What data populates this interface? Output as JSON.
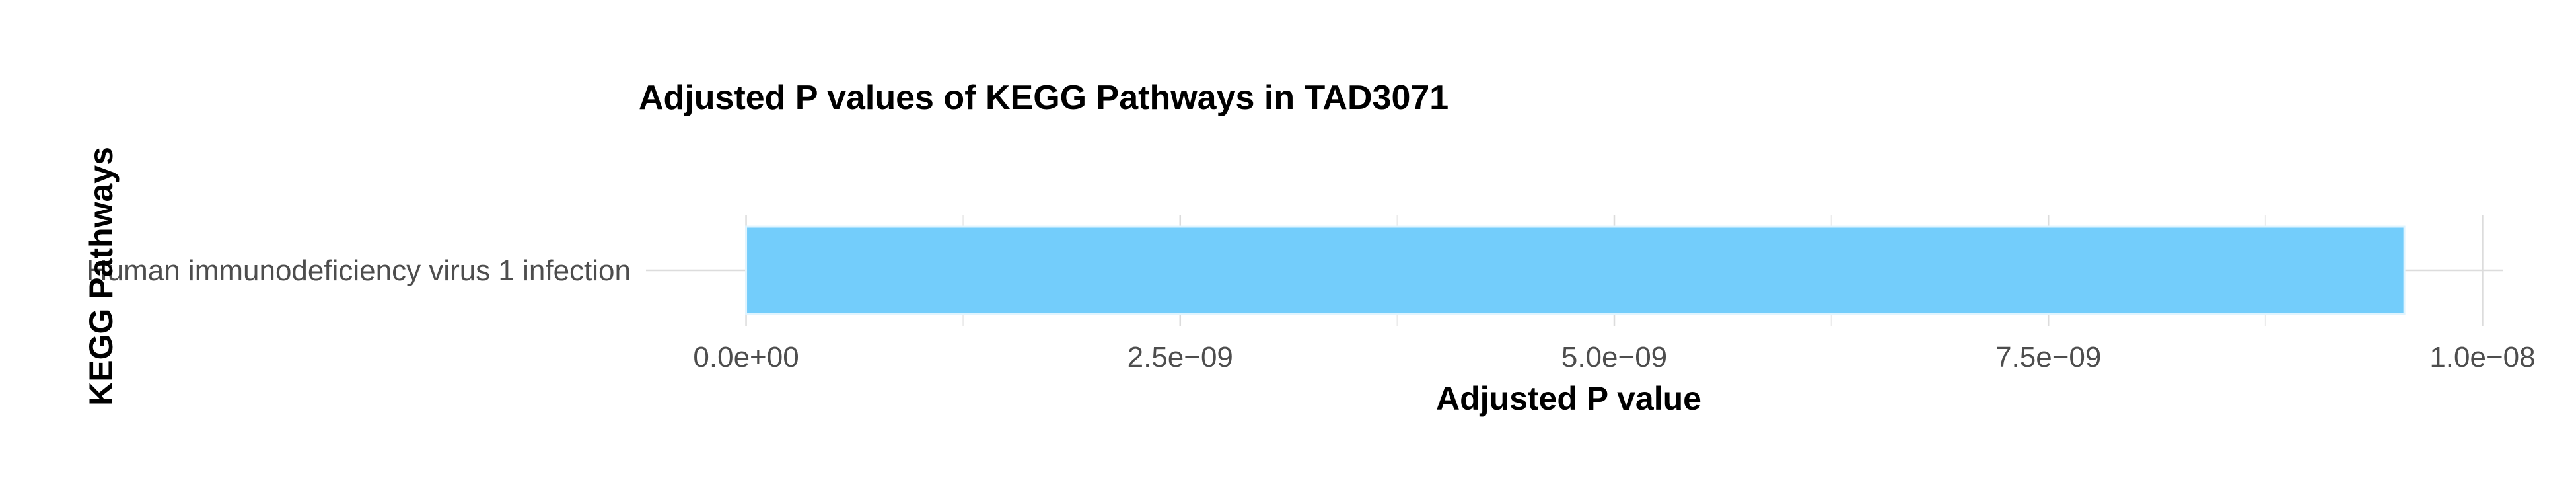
{
  "chart_data": {
    "type": "bar",
    "orientation": "horizontal",
    "title": "Adjusted P values of KEGG Pathways in TAD3071",
    "xlabel": "Adjusted P value",
    "ylabel": "KEGG Pathways",
    "categories": [
      "Human immunodeficiency virus 1 infection"
    ],
    "values": [
      9.55e-09
    ],
    "xlim": [
      0,
      1e-08
    ],
    "xticks": [
      0,
      2.5e-09,
      5e-09,
      7.5e-09,
      1e-08
    ],
    "xtick_labels": [
      "0.0e+00",
      "2.5e−09",
      "5.0e−09",
      "7.5e−09",
      "1.0e−08"
    ],
    "bar_color": "#73CDFB",
    "grid": true,
    "legend": "none"
  }
}
